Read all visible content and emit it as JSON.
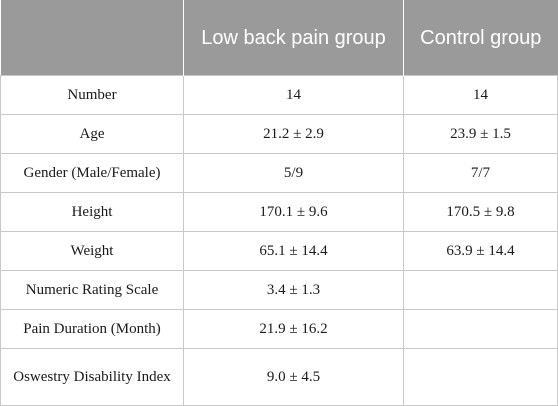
{
  "header": {
    "col1": "",
    "col2": "Low back pain group",
    "col3": "Control group"
  },
  "rows": [
    {
      "label": "Number",
      "lbp": "14",
      "control": "14"
    },
    {
      "label": "Age",
      "lbp": "21.2 ± 2.9",
      "control": "23.9 ± 1.5"
    },
    {
      "label": "Gender (Male/Female)",
      "lbp": "5/9",
      "control": "7/7"
    },
    {
      "label": "Height",
      "lbp": "170.1 ± 9.6",
      "control": "170.5 ± 9.8"
    },
    {
      "label": "Weight",
      "lbp": "65.1 ± 14.4",
      "control": "63.9 ± 14.4"
    },
    {
      "label": "Numeric Rating Scale",
      "lbp": "3.4 ± 1.3",
      "control": ""
    },
    {
      "label": "Pain Duration (Month)",
      "lbp": "21.9 ± 16.2",
      "control": ""
    },
    {
      "label": "Oswestry Disability Index",
      "lbp": "9.0 ± 4.5",
      "control": ""
    }
  ]
}
